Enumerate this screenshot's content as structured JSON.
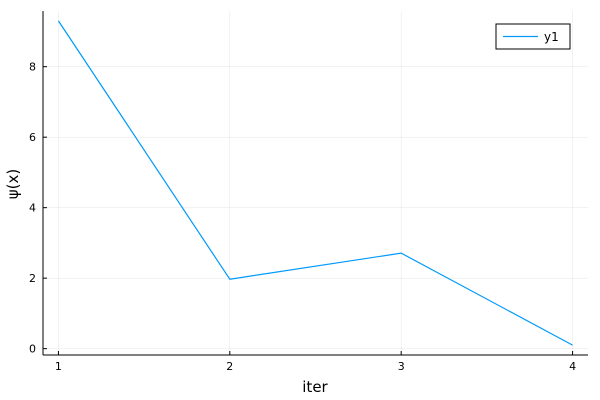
{
  "chart_data": {
    "type": "line",
    "x": [
      1,
      2,
      3,
      4
    ],
    "series": [
      {
        "name": "y1",
        "values": [
          9.3,
          1.97,
          2.71,
          0.1
        ],
        "color": "#009AFA"
      }
    ],
    "xlabel": "iter",
    "ylabel": "ψ(x)",
    "xticks": [
      "1",
      "2",
      "3",
      "4"
    ],
    "yticks": [
      "0",
      "2",
      "4",
      "6",
      "8"
    ],
    "xlim": [
      0.91,
      4.09
    ],
    "ylim": [
      -0.18,
      9.58
    ],
    "grid": true,
    "legend_position": "top-right"
  }
}
